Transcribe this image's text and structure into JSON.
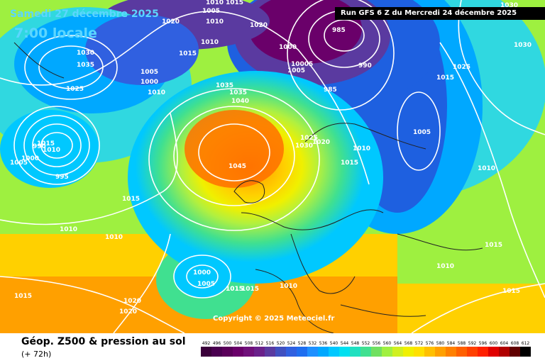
{
  "header": {
    "date": "Samedi 27 décembre 2025",
    "time": "7:00 locale",
    "run": "Run GFS 6 Z du Mercredi 24 décembre 2025"
  },
  "copyright": "Copyright © 2025 Meteociel.fr",
  "footer": {
    "title": "Géop. Z500 & pression au sol",
    "subtitle": "(+ 72h)"
  },
  "scale": {
    "labels": [
      "492",
      "496",
      "500",
      "504",
      "508",
      "512",
      "516",
      "520",
      "524",
      "528",
      "532",
      "536",
      "540",
      "544",
      "548",
      "552",
      "556",
      "560",
      "564",
      "568",
      "572",
      "576",
      "580",
      "584",
      "588",
      "592",
      "596",
      "600",
      "604",
      "608",
      "612"
    ],
    "colors": [
      "#3a003a",
      "#4a0050",
      "#5a005a",
      "#6a006a",
      "#70107a",
      "#6a208a",
      "#5a3aa0",
      "#4050c0",
      "#3060e0",
      "#1e6ef0",
      "#1e90ff",
      "#00a8ff",
      "#00c8ff",
      "#00e0f0",
      "#20e0c0",
      "#40e090",
      "#70e060",
      "#a0f040",
      "#d0f020",
      "#f0f000",
      "#ffe000",
      "#ffc000",
      "#ffa000",
      "#ff8000",
      "#ff6000",
      "#ff4000",
      "#ff2000",
      "#e00000",
      "#b00000",
      "#600000",
      "#000000"
    ]
  },
  "pressure_labels": [
    {
      "t": "1020"
    },
    {
      "t": "1010"
    },
    {
      "t": "1005"
    },
    {
      "t": "1015"
    },
    {
      "t": "1020"
    },
    {
      "t": "1010"
    },
    {
      "t": "1030"
    },
    {
      "t": "1035"
    },
    {
      "t": "1025"
    },
    {
      "t": "1015"
    },
    {
      "t": "1005"
    },
    {
      "t": "1000"
    },
    {
      "t": "1010"
    },
    {
      "t": "985"
    },
    {
      "t": "990"
    },
    {
      "t": "985"
    },
    {
      "t": "1000"
    },
    {
      "t": "10005"
    },
    {
      "t": "1005"
    },
    {
      "t": "1035"
    },
    {
      "t": "1035"
    },
    {
      "t": "1040"
    },
    {
      "t": "1030"
    },
    {
      "t": "1025"
    },
    {
      "t": "1020"
    },
    {
      "t": "1015"
    },
    {
      "t": "1005"
    },
    {
      "t": "1000"
    },
    {
      "t": "995"
    },
    {
      "t": "990"
    },
    {
      "t": "1045"
    },
    {
      "t": "1010"
    },
    {
      "t": "1015"
    },
    {
      "t": "1010"
    },
    {
      "t": "1010"
    },
    {
      "t": "1015"
    },
    {
      "t": "1000"
    },
    {
      "t": "1005"
    },
    {
      "t": "1015"
    },
    {
      "t": "1015"
    },
    {
      "t": "1020"
    },
    {
      "t": "1020"
    },
    {
      "t": "1015"
    },
    {
      "t": "1010"
    },
    {
      "t": "1010"
    },
    {
      "t": "1015"
    },
    {
      "t": "1030"
    },
    {
      "t": "1030"
    },
    {
      "t": "1025"
    },
    {
      "t": "1005"
    },
    {
      "t": "1010"
    },
    {
      "t": "1015"
    },
    {
      "t": "1015"
    },
    {
      "t": "1010"
    },
    {
      "t": "1015"
    },
    {
      "t": "1010"
    }
  ]
}
